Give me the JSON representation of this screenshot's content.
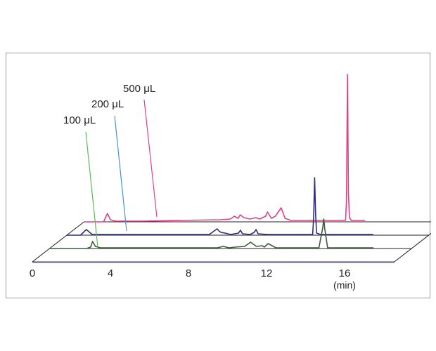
{
  "chart_data": {
    "type": "line",
    "title": "",
    "xlabel": "",
    "x_unit": "(min)",
    "xlim": [
      0,
      16
    ],
    "x_ticks": [
      "0",
      "4",
      "8",
      "12",
      "16"
    ],
    "series": [
      {
        "name": "100 μL",
        "color": "#3d5a3c",
        "callout_color": "#5cb85c",
        "x": [
          0,
          1.9,
          2.1,
          2.2,
          2.35,
          2.6,
          4.5,
          8.6,
          8.9,
          9.2,
          9.5,
          10.0,
          10.3,
          10.6,
          10.9,
          11.0,
          11.2,
          11.6,
          12.5,
          13.0,
          13.8,
          14.0,
          14.05,
          14.1,
          14.25,
          14.6,
          16.6
        ],
        "y": [
          0,
          0,
          2,
          10,
          3,
          1,
          1,
          1,
          3,
          1,
          2,
          3,
          9,
          3,
          4,
          2,
          7,
          1,
          1,
          1,
          1,
          30,
          42,
          28,
          1,
          1,
          1
        ]
      },
      {
        "name": "200 μL",
        "color": "#2e2e7a",
        "callout_color": "#4a90d9",
        "x": [
          0,
          0.7,
          0.85,
          1.0,
          1.3,
          4.0,
          6.5,
          7.3,
          7.5,
          7.6,
          7.7,
          7.8,
          7.9,
          8.1,
          8.4,
          8.8,
          8.9,
          9.0,
          9.4,
          9.6,
          9.7,
          9.8,
          10.3,
          12.6,
          12.65,
          12.7,
          12.75,
          12.8,
          13.0,
          15.7
        ],
        "y": [
          0,
          0,
          4,
          8,
          1,
          1,
          1,
          1,
          5,
          7,
          9,
          6,
          4,
          3,
          1,
          3,
          7,
          2,
          1,
          4,
          8,
          2,
          1,
          1,
          25,
          82,
          30,
          3,
          1,
          1
        ],
        "peak_values": [
          8,
          9,
          7,
          8,
          82
        ]
      },
      {
        "name": "500 μL",
        "color": "#e0408a",
        "callout_color": "#e0408a",
        "x": [
          0,
          1.0,
          1.1,
          1.2,
          1.35,
          1.6,
          3.0,
          5.0,
          7.0,
          7.5,
          7.7,
          7.9,
          8.0,
          8.2,
          8.5,
          8.8,
          9.0,
          9.3,
          9.4,
          9.6,
          9.8,
          10.0,
          10.1,
          10.3,
          10.6,
          13.4,
          13.45,
          13.5,
          13.55,
          13.6,
          13.7,
          14.4
        ],
        "y": [
          0,
          0,
          6,
          12,
          3,
          1,
          1,
          2,
          3,
          4,
          8,
          5,
          10,
          6,
          4,
          6,
          4,
          8,
          14,
          5,
          8,
          16,
          20,
          5,
          2,
          2,
          30,
          210,
          40,
          6,
          2,
          2
        ]
      }
    ],
    "grid": false,
    "legend": "callouts"
  }
}
